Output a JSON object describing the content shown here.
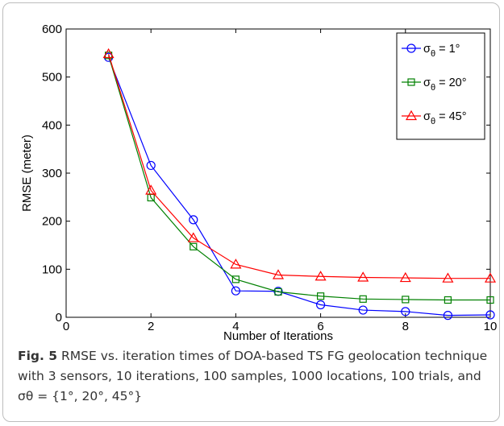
{
  "chart_data": {
    "type": "line",
    "xlabel": "Number of Iterations",
    "ylabel": "RMSE (meter)",
    "xlim": [
      0,
      10
    ],
    "ylim": [
      0,
      600
    ],
    "xticks": [
      0,
      2,
      4,
      6,
      8,
      10
    ],
    "yticks": [
      0,
      100,
      200,
      300,
      400,
      500,
      600
    ],
    "grid": false,
    "legend_position": "top-right",
    "x": [
      1,
      2,
      3,
      4,
      5,
      6,
      7,
      8,
      9,
      10
    ],
    "series": [
      {
        "name": "σθ = 1°",
        "name_base": "σ",
        "name_sub": "θ",
        "name_rest": " = 1°",
        "color": "#0000ff",
        "marker": "circle",
        "values": [
          541,
          316,
          203,
          55,
          54,
          26,
          15,
          12,
          4,
          5
        ]
      },
      {
        "name": "σθ = 20°",
        "name_base": "σ",
        "name_sub": "θ",
        "name_rest": " = 20°",
        "color": "#008000",
        "marker": "square",
        "values": [
          545,
          249,
          147,
          79,
          53,
          44,
          38,
          37,
          36,
          36
        ]
      },
      {
        "name": "σθ = 45°",
        "name_base": "σ",
        "name_sub": "θ",
        "name_rest": " = 45°",
        "color": "#ff0000",
        "marker": "triangle",
        "values": [
          548,
          264,
          165,
          110,
          88,
          85,
          83,
          82,
          81,
          81
        ]
      }
    ]
  },
  "caption": {
    "label": "Fig. 5",
    "text": " RMSE vs. iteration times of DOA-based TS FG geolocation technique with 3 sensors, 10 iterations, 100 samples, 1000 locations, 100 trials, and σθ = {1°, 20°, 45°}"
  }
}
